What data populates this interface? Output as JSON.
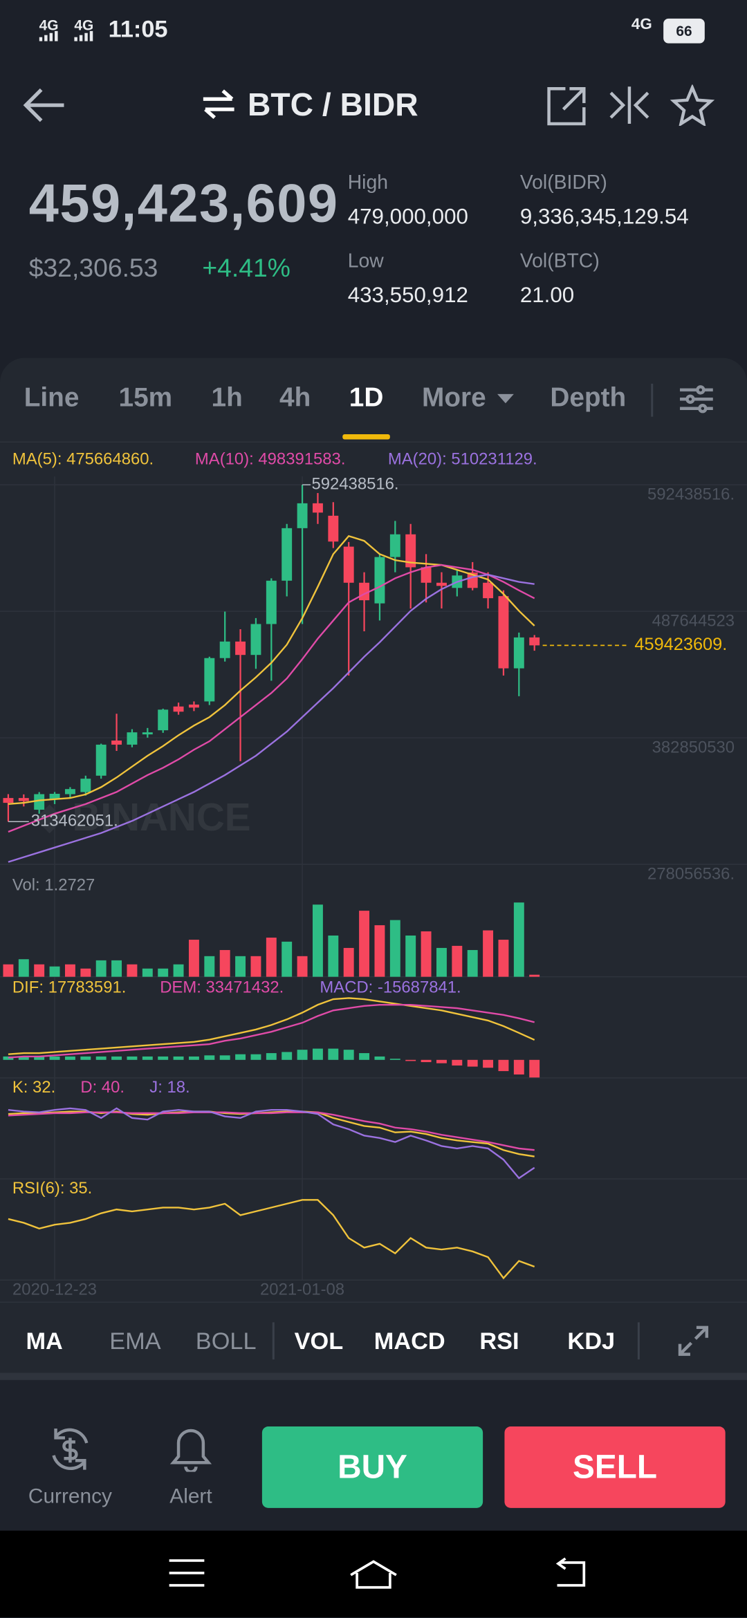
{
  "status_bar": {
    "signal_1": "4G",
    "signal_2": "4G",
    "time": "11:05",
    "network": "4G",
    "battery": "66"
  },
  "header": {
    "pair": "BTC / BIDR"
  },
  "ticker": {
    "price": "459,423,609",
    "price_usd": "$32,306.53",
    "change": "+4.41%",
    "high_label": "High",
    "high": "479,000,000",
    "low_label": "Low",
    "low": "433,550,912",
    "vol_quote_label": "Vol(BIDR)",
    "vol_quote": "9,336,345,129.54",
    "vol_base_label": "Vol(BTC)",
    "vol_base": "21.00"
  },
  "intervals": [
    "Line",
    "15m",
    "1h",
    "4h",
    "1D",
    "More",
    "Depth"
  ],
  "active_interval": 4,
  "chart_data": [
    {
      "type": "candlestick",
      "categories": [
        null,
        null,
        null,
        "2020-12-23",
        null,
        null,
        null,
        null,
        null,
        null,
        null,
        null,
        null,
        null,
        null,
        null,
        null,
        null,
        null,
        "2021-01-08",
        null,
        null,
        null,
        null,
        null,
        null,
        null,
        null,
        null,
        null,
        null,
        null,
        null,
        null,
        null
      ],
      "open": [
        333000000,
        333000000,
        323300000,
        331900000,
        336200000,
        337900000,
        351500000,
        380600000,
        377200000,
        385700000,
        389100000,
        408800000,
        410400000,
        413000000,
        448900000,
        462600000,
        451500000,
        477100000,
        513000000,
        556500000,
        577100000,
        566800000,
        541200000,
        511300000,
        494200000,
        532600000,
        551400000,
        524100000,
        511300000,
        507000000,
        519800000,
        511300000,
        500200000,
        440400000,
        466000000
      ],
      "high": [
        336200000,
        336000000,
        337900000,
        338000000,
        342000000,
        351500000,
        378000000,
        402800000,
        390000000,
        391000000,
        407000000,
        412000000,
        413000000,
        450000000,
        487400000,
        472800000,
        482000000,
        515000000,
        560000000,
        592438516,
        585600000,
        578000000,
        545000000,
        520000000,
        535000000,
        562500000,
        560000000,
        535000000,
        520000000,
        522000000,
        528400000,
        520000000,
        505000000,
        470000000,
        468000000
      ],
      "low": [
        313462051,
        326000000,
        320000000,
        328000000,
        333000000,
        335000000,
        349000000,
        372000000,
        375000000,
        383000000,
        387000000,
        402000000,
        405000000,
        410000000,
        446000000,
        363500000,
        440000000,
        430100000,
        500000000,
        477100000,
        560000000,
        540000000,
        434400000,
        471100000,
        480000000,
        520000000,
        489900000,
        495000000,
        490000000,
        500000000,
        505000000,
        490000000,
        434400000,
        417300000,
        455000000
      ],
      "close": [
        329000000,
        330500000,
        336200000,
        336500000,
        340400000,
        349000000,
        377200000,
        377200000,
        387400000,
        387400000,
        406200000,
        404500000,
        407900000,
        448900000,
        462600000,
        451500000,
        477100000,
        513000000,
        556500000,
        577100000,
        569400000,
        545400000,
        511300000,
        496800000,
        532600000,
        551400000,
        524100000,
        511300000,
        508700000,
        517300000,
        507000000,
        498500000,
        440400000,
        466000000,
        459423609
      ],
      "up_color": "#2ebd85",
      "down_color": "#f6465d",
      "series": [
        {
          "name": "MA(5): 475664860.",
          "color": "#f0c33c",
          "values": [
            328000000,
            329000000,
            331000000,
            332000000,
            333000000,
            336000000,
            342000000,
            350000000,
            359000000,
            368000000,
            376000000,
            385000000,
            393000000,
            400000000,
            410000000,
            422000000,
            433000000,
            445000000,
            460000000,
            482000000,
            508000000,
            535000000,
            550000000,
            546000000,
            535000000,
            530000000,
            528000000,
            527000000,
            526000000,
            522000000,
            518000000,
            514000000,
            502000000,
            488000000,
            475664860
          ]
        },
        {
          "name": "MA(10): 498391583.",
          "color": "#e04ba8",
          "values": [
            305000000,
            310000000,
            315000000,
            320000000,
            324000000,
            328000000,
            333000000,
            338000000,
            345000000,
            352000000,
            358000000,
            365000000,
            373000000,
            380000000,
            390000000,
            400000000,
            410000000,
            420000000,
            432000000,
            448000000,
            465000000,
            480000000,
            495000000,
            502000000,
            508000000,
            515000000,
            520000000,
            524000000,
            526000000,
            524000000,
            522000000,
            518000000,
            512000000,
            505000000,
            498391583
          ]
        },
        {
          "name": "MA(20): 510231129.",
          "color": "#9b72e0",
          "values": [
            280000000,
            284000000,
            288000000,
            292000000,
            296000000,
            300000000,
            304000000,
            309000000,
            314000000,
            320000000,
            326000000,
            332000000,
            338000000,
            345000000,
            352000000,
            360000000,
            368000000,
            378000000,
            388000000,
            400000000,
            412000000,
            424000000,
            437000000,
            450000000,
            462000000,
            475000000,
            488000000,
            498000000,
            506000000,
            512000000,
            516000000,
            518000000,
            515000000,
            512000000,
            510231129
          ]
        }
      ],
      "ylim": [
        278056536,
        599272916
      ],
      "yticks": [
        {
          "value": 592438516,
          "label": "592438516."
        },
        {
          "value": 487644523,
          "label": "487644523"
        },
        {
          "value": 382850530,
          "label": "382850530"
        },
        {
          "value": 278056536,
          "label": "278056536."
        }
      ],
      "grid": true,
      "max_label": "592438516.",
      "min_label": "313462051.",
      "last_price_label": "459423609.",
      "last_price_color": "#f0b90b",
      "watermark": "BINANCE"
    },
    {
      "type": "bar",
      "title": "Vol: 1.2727",
      "values": [
        7.7,
        10.9,
        7.7,
        6.4,
        7.7,
        5.1,
        10.2,
        10.2,
        7.7,
        5.1,
        5.1,
        7.7,
        23.0,
        12.8,
        16.6,
        12.8,
        12.8,
        24.3,
        21.8,
        12.8,
        44.8,
        25.6,
        17.9,
        41.0,
        32.0,
        35.2,
        25.6,
        28.2,
        17.9,
        19.2,
        16.6,
        28.8,
        23.0,
        46.1,
        1.2727
      ],
      "colors": [
        "#f6465d",
        "#2ebd85",
        "#f6465d",
        "#2ebd85",
        "#f6465d",
        "#f6465d",
        "#2ebd85",
        "#2ebd85",
        "#f6465d",
        "#2ebd85",
        "#2ebd85",
        "#2ebd85",
        "#f6465d",
        "#2ebd85",
        "#f6465d",
        "#2ebd85",
        "#f6465d",
        "#f6465d",
        "#2ebd85",
        "#f6465d",
        "#2ebd85",
        "#2ebd85",
        "#f6465d",
        "#f6465d",
        "#f6465d",
        "#2ebd85",
        "#2ebd85",
        "#f6465d",
        "#2ebd85",
        "#f6465d",
        "#2ebd85",
        "#f6465d",
        "#f6465d",
        "#2ebd85",
        "#f6465d"
      ],
      "ylim": [
        0,
        49.3
      ]
    },
    {
      "type": "combo",
      "series": [
        {
          "name": "DIF: 17783591.",
          "color": "#f0c33c",
          "kind": "line",
          "values": [
            5000000,
            6000000,
            6000000,
            7000000,
            8000000,
            9000000,
            10000000,
            11000000,
            12000000,
            13000000,
            14000000,
            15000000,
            16000000,
            18000000,
            21000000,
            24000000,
            27000000,
            31000000,
            36000000,
            42000000,
            49000000,
            54000000,
            55000000,
            54000000,
            52000000,
            50000000,
            48000000,
            46000000,
            44000000,
            41000000,
            38000000,
            35000000,
            30000000,
            24000000,
            17783591
          ]
        },
        {
          "name": "DEM: 33471432.",
          "color": "#e04ba8",
          "kind": "line",
          "values": [
            2000000,
            3000000,
            3000000,
            4000000,
            5000000,
            6000000,
            7000000,
            8000000,
            9000000,
            10000000,
            11000000,
            12000000,
            13000000,
            14000000,
            17000000,
            19000000,
            22000000,
            25000000,
            29000000,
            33000000,
            39000000,
            44000000,
            46000000,
            48000000,
            49000000,
            49000000,
            49000000,
            48000000,
            47000000,
            46000000,
            44000000,
            42000000,
            40000000,
            37000000,
            33471432
          ]
        },
        {
          "name": "MACD: -15687841.",
          "color": "#9b72e0",
          "kind": "bar",
          "up_color": "#2ebd85",
          "down_color": "#f6465d",
          "values": [
            3000000,
            3000000,
            3000000,
            3000000,
            3000000,
            3000000,
            3000000,
            3000000,
            3000000,
            3000000,
            3000000,
            3000000,
            3000000,
            4000000,
            4000000,
            5000000,
            5000000,
            6000000,
            7000000,
            9000000,
            10000000,
            10000000,
            9000000,
            6000000,
            3000000,
            1000000,
            -1000000,
            -2000000,
            -3000000,
            -5000000,
            -6000000,
            -7000000,
            -10000000,
            -13000000,
            -15687841
          ]
        }
      ],
      "ylim": [
        -16000000,
        73000000
      ]
    },
    {
      "type": "line",
      "series": [
        {
          "name": "K: 32.",
          "color": "#f0c33c",
          "values": [
            85,
            86,
            86,
            87,
            88,
            88,
            86,
            88,
            85,
            84,
            86,
            87,
            88,
            88,
            86,
            85,
            86,
            87,
            88,
            88,
            87,
            80,
            75,
            70,
            68,
            62,
            63,
            60,
            55,
            52,
            50,
            48,
            40,
            35,
            32
          ]
        },
        {
          "name": "D: 40.",
          "color": "#e04ba8",
          "values": [
            83,
            84,
            85,
            86,
            86,
            87,
            87,
            87,
            86,
            86,
            86,
            86,
            87,
            87,
            87,
            86,
            86,
            86,
            87,
            87,
            87,
            84,
            80,
            76,
            73,
            68,
            66,
            63,
            59,
            56,
            53,
            50,
            46,
            42,
            40
          ]
        },
        {
          "name": "J: 18.",
          "color": "#9b72e0",
          "values": [
            90,
            88,
            87,
            90,
            92,
            90,
            80,
            92,
            80,
            78,
            88,
            90,
            88,
            88,
            82,
            80,
            88,
            90,
            90,
            88,
            85,
            72,
            66,
            58,
            55,
            50,
            58,
            52,
            45,
            42,
            45,
            42,
            28,
            5,
            18
          ]
        }
      ],
      "ylim": [
        4,
        130
      ]
    },
    {
      "type": "line",
      "series": [
        {
          "name": "RSI(6): 35.",
          "color": "#f0c33c",
          "values": [
            60,
            58,
            55,
            57,
            58,
            60,
            63,
            65,
            64,
            65,
            66,
            66,
            65,
            66,
            68,
            62,
            64,
            66,
            68,
            70,
            70,
            62,
            50,
            45,
            47,
            42,
            50,
            45,
            44,
            45,
            43,
            40,
            29,
            38,
            35
          ]
        }
      ],
      "ylim": [
        28,
        81
      ]
    }
  ],
  "indicators": [
    "MA",
    "EMA",
    "BOLL",
    "VOL",
    "MACD",
    "RSI",
    "KDJ"
  ],
  "indicators_active": [
    true,
    false,
    false,
    true,
    true,
    true,
    true
  ],
  "actions": {
    "currency": "Currency",
    "alert": "Alert",
    "buy": "BUY",
    "sell": "SELL"
  }
}
